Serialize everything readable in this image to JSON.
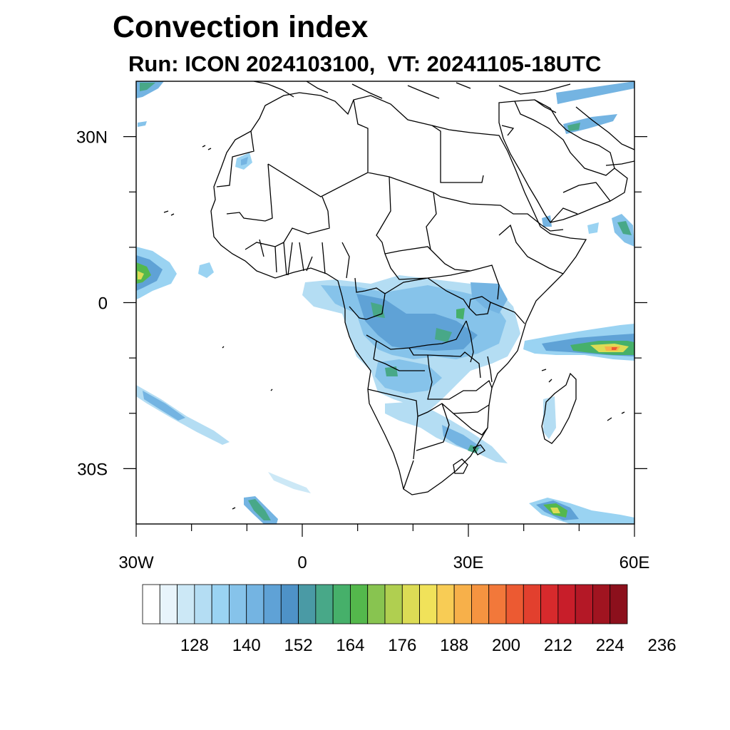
{
  "title": "Convection index",
  "subtitle": "Run: ICON 2024103100,  VT: 20241105-18UTC",
  "map": {
    "lon_range": [
      -30,
      60
    ],
    "lat_range": [
      -40,
      40
    ],
    "lon_ticks": [
      {
        "value": -30,
        "label": "30W"
      },
      {
        "value": 0,
        "label": "0"
      },
      {
        "value": 30,
        "label": "30E"
      },
      {
        "value": 60,
        "label": "60E"
      }
    ],
    "lat_ticks": [
      {
        "value": 30,
        "label": "30N"
      },
      {
        "value": 0,
        "label": "0"
      },
      {
        "value": -30,
        "label": "30S"
      }
    ]
  },
  "colorbar": {
    "colors": [
      "#ffffff",
      "#e8f4fb",
      "#cce8f6",
      "#b4ddf3",
      "#9ad3f2",
      "#86c3ea",
      "#74b4e2",
      "#5fa2d6",
      "#4e92c7",
      "#4a9aa5",
      "#48a888",
      "#46b06a",
      "#54b84c",
      "#88c450",
      "#b0cf50",
      "#dcdc55",
      "#f0e25a",
      "#f8cc55",
      "#f7b04a",
      "#f59440",
      "#f2783a",
      "#ec5a32",
      "#e2402e",
      "#d72a2c",
      "#c81e2a",
      "#b41826",
      "#a01420",
      "#8c101c"
    ],
    "labels": [
      "128",
      "140",
      "152",
      "164",
      "176",
      "188",
      "200",
      "212",
      "224",
      "236"
    ]
  }
}
